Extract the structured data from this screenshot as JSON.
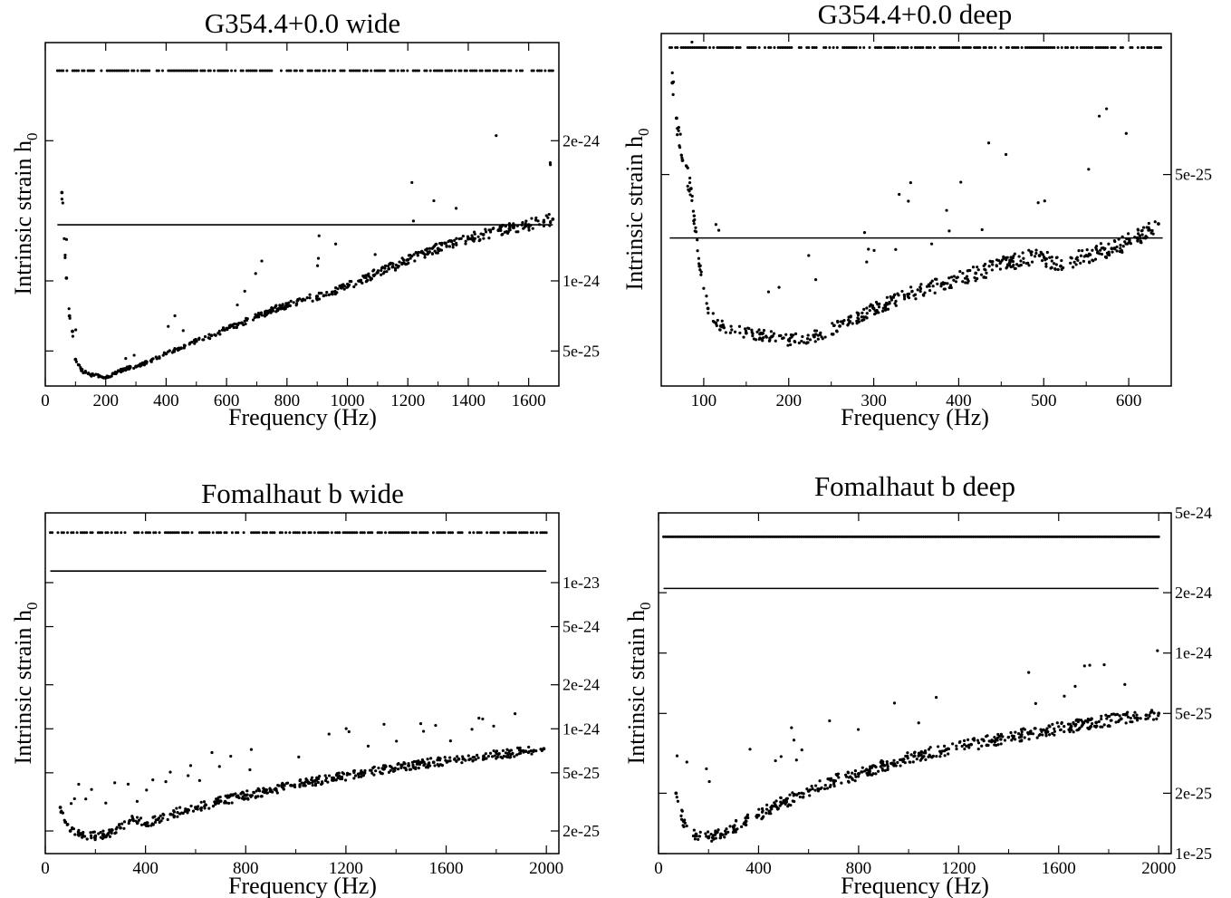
{
  "figure": {
    "ylabel_main": "Intrinsic strain h",
    "ylabel_sub": "0"
  },
  "chart_data": [
    {
      "type": "scatter",
      "title": "G354.4+0.0 wide",
      "xlabel": "Frequency (Hz)",
      "ylabel": "Intrinsic strain h0",
      "xlim": [
        0,
        1700
      ],
      "ylim": [
        2.5e-25,
        2.7e-24
      ],
      "yscale": "linear",
      "xticks": [
        0,
        200,
        400,
        600,
        800,
        1000,
        1200,
        1400,
        1600
      ],
      "xticklabels": [
        "0",
        "200",
        "400",
        "600",
        "800",
        "1000",
        "1200",
        "1400",
        "1600"
      ],
      "yticks": [
        5e-25,
        1e-24,
        2e-24
      ],
      "yticklabels": [
        "5e-25",
        "1e-24",
        "2e-24"
      ],
      "hline": {
        "y": 1.4e-24,
        "x": [
          40,
          1680
        ]
      },
      "marker_band": {
        "y": 2.5e-24,
        "x": [
          40,
          1680
        ]
      },
      "series": [
        {
          "points": [
            [
              55,
              1.63e-24
            ],
            [
              70,
              1.02e-24
            ],
            [
              80,
              7.5e-25
            ],
            [
              90,
              6.4e-25
            ],
            [
              100,
              4.4e-25
            ],
            [
              120,
              3.6e-25
            ],
            [
              150,
              3.3e-25
            ],
            [
              180,
              3.2e-25
            ],
            [
              200,
              3.1e-25
            ],
            [
              230,
              3.4e-25
            ],
            [
              260,
              3.7e-25
            ],
            [
              300,
              3.9e-25
            ],
            [
              350,
              4.3e-25
            ],
            [
              400,
              4.8e-25
            ],
            [
              450,
              5.2e-25
            ],
            [
              500,
              5.7e-25
            ],
            [
              550,
              6.1e-25
            ],
            [
              600,
              6.6e-25
            ],
            [
              650,
              7e-25
            ],
            [
              700,
              7.5e-25
            ],
            [
              750,
              7.9e-25
            ],
            [
              800,
              8.3e-25
            ],
            [
              850,
              8.6e-25
            ],
            [
              900,
              8.9e-25
            ],
            [
              950,
              9.2e-25
            ],
            [
              980,
              9.5e-25
            ],
            [
              1040,
              1e-24
            ],
            [
              1100,
              1.06e-24
            ],
            [
              1150,
              1.1e-24
            ],
            [
              1200,
              1.15e-24
            ],
            [
              1250,
              1.2e-24
            ],
            [
              1300,
              1.23e-24
            ],
            [
              1350,
              1.26e-24
            ],
            [
              1400,
              1.3e-24
            ],
            [
              1450,
              1.33e-24
            ],
            [
              1500,
              1.36e-24
            ],
            [
              1550,
              1.38e-24
            ],
            [
              1600,
              1.4e-24
            ],
            [
              1650,
              1.42e-24
            ],
            [
              1680,
              1.44e-24
            ]
          ]
        }
      ]
    },
    {
      "type": "scatter",
      "title": "G354.4+0.0 deep",
      "xlabel": "Frequency (Hz)",
      "ylabel": "Intrinsic strain h0",
      "xlim": [
        50,
        650
      ],
      "ylim": [
        2e-25,
        7e-25
      ],
      "yscale": "linear",
      "xticks": [
        100,
        200,
        300,
        400,
        500,
        600
      ],
      "xticklabels": [
        "100",
        "200",
        "300",
        "400",
        "500",
        "600"
      ],
      "yticks": [
        5e-25
      ],
      "yticklabels": [
        "5e-25"
      ],
      "hline": {
        "y": 4.1e-25,
        "x": [
          60,
          640
        ]
      },
      "marker_band": {
        "y": 6.8e-25,
        "x": [
          60,
          640
        ]
      },
      "series": [
        {
          "points": [
            [
              63,
              6.3e-25
            ],
            [
              68,
              5.8e-25
            ],
            [
              75,
              5.2e-25
            ],
            [
              85,
              4.8e-25
            ],
            [
              95,
              3.7e-25
            ],
            [
              105,
              3.1e-25
            ],
            [
              120,
              2.85e-25
            ],
            [
              150,
              2.75e-25
            ],
            [
              180,
              2.7e-25
            ],
            [
              200,
              2.65e-25
            ],
            [
              230,
              2.7e-25
            ],
            [
              260,
              2.85e-25
            ],
            [
              300,
              3.1e-25
            ],
            [
              340,
              3.3e-25
            ],
            [
              380,
              3.45e-25
            ],
            [
              420,
              3.6e-25
            ],
            [
              460,
              3.75e-25
            ],
            [
              495,
              3.85e-25
            ],
            [
              520,
              3.7e-25
            ],
            [
              550,
              3.85e-25
            ],
            [
              580,
              3.95e-25
            ],
            [
              610,
              4.1e-25
            ],
            [
              635,
              4.3e-25
            ]
          ]
        }
      ]
    },
    {
      "type": "scatter",
      "title": "Fomalhaut b wide",
      "xlabel": "Frequency (Hz)",
      "ylabel": "Intrinsic strain h0",
      "xlim": [
        0,
        2050
      ],
      "ylim": [
        1.4e-25,
        3e-23
      ],
      "yscale": "log",
      "xticks": [
        0,
        400,
        800,
        1200,
        1600,
        2000
      ],
      "xticklabels": [
        "0",
        "400",
        "800",
        "1200",
        "1600",
        "2000"
      ],
      "yticks": [
        2e-25,
        5e-25,
        1e-24,
        2e-24,
        5e-24,
        1e-23
      ],
      "yticklabels": [
        "2e-25",
        "5e-25",
        "1e-24",
        "2e-24",
        "5e-24",
        "1e-23"
      ],
      "hline": {
        "y": 1.2e-23,
        "x": [
          20,
          2000
        ]
      },
      "marker_band": {
        "y": 2.2e-23,
        "x": [
          20,
          2000
        ]
      },
      "series": [
        {
          "points": [
            [
              60,
              2.9e-25
            ],
            [
              80,
              2.3e-25
            ],
            [
              100,
              2e-25
            ],
            [
              150,
              1.85e-25
            ],
            [
              200,
              1.85e-25
            ],
            [
              250,
              1.9e-25
            ],
            [
              300,
              2.1e-25
            ],
            [
              350,
              2.4e-25
            ],
            [
              400,
              2.25e-25
            ],
            [
              450,
              2.4e-25
            ],
            [
              500,
              2.6e-25
            ],
            [
              600,
              2.9e-25
            ],
            [
              700,
              3.2e-25
            ],
            [
              800,
              3.5e-25
            ],
            [
              900,
              3.8e-25
            ],
            [
              980,
              4.1e-25
            ],
            [
              1050,
              4.3e-25
            ],
            [
              1150,
              4.6e-25
            ],
            [
              1250,
              4.9e-25
            ],
            [
              1350,
              5.3e-25
            ],
            [
              1450,
              5.6e-25
            ],
            [
              1550,
              5.9e-25
            ],
            [
              1650,
              6.2e-25
            ],
            [
              1750,
              6.5e-25
            ],
            [
              1850,
              6.8e-25
            ],
            [
              1950,
              7.1e-25
            ],
            [
              1990,
              7.3e-25
            ]
          ]
        }
      ]
    },
    {
      "type": "scatter",
      "title": "Fomalhaut b deep",
      "xlabel": "Frequency (Hz)",
      "ylabel": "Intrinsic strain h0",
      "xlim": [
        0,
        2050
      ],
      "ylim": [
        1e-25,
        5e-24
      ],
      "yscale": "log",
      "xticks": [
        0,
        400,
        800,
        1200,
        1600,
        2000
      ],
      "xticklabels": [
        "0",
        "400",
        "800",
        "1200",
        "1600",
        "2000"
      ],
      "yticks": [
        1e-25,
        2e-25,
        5e-25,
        1e-24,
        2e-24,
        5e-24
      ],
      "yticklabels": [
        "1e-25",
        "2e-25",
        "5e-25",
        "1e-24",
        "2e-24",
        "5e-24"
      ],
      "hline": {
        "y": 2.1e-24,
        "x": [
          20,
          2000
        ]
      },
      "marker_band": {
        "y": 3.8e-24,
        "x": [
          20,
          2000
        ]
      },
      "series": [
        {
          "points": [
            [
              70,
              2e-25
            ],
            [
              100,
              1.45e-25
            ],
            [
              150,
              1.25e-25
            ],
            [
              200,
              1.2e-25
            ],
            [
              250,
              1.25e-25
            ],
            [
              300,
              1.35e-25
            ],
            [
              350,
              1.45e-25
            ],
            [
              400,
              1.55e-25
            ],
            [
              450,
              1.7e-25
            ],
            [
              500,
              1.8e-25
            ],
            [
              600,
              2.05e-25
            ],
            [
              700,
              2.3e-25
            ],
            [
              800,
              2.5e-25
            ],
            [
              900,
              2.75e-25
            ],
            [
              980,
              2.95e-25
            ],
            [
              1050,
              3.1e-25
            ],
            [
              1150,
              3.3e-25
            ],
            [
              1250,
              3.5e-25
            ],
            [
              1350,
              3.7e-25
            ],
            [
              1450,
              3.9e-25
            ],
            [
              1550,
              4.1e-25
            ],
            [
              1650,
              4.3e-25
            ],
            [
              1750,
              4.5e-25
            ],
            [
              1850,
              4.7e-25
            ],
            [
              1950,
              4.9e-25
            ],
            [
              2000,
              5e-25
            ]
          ]
        }
      ]
    }
  ]
}
